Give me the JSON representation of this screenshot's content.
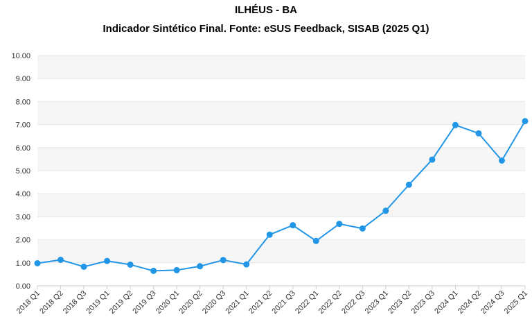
{
  "chart_data": {
    "type": "line",
    "title": "ILHÉUS - BA",
    "subtitle": "Indicador Sintético Final. Fonte: eSUS Feedback, SISAB (2025 Q1)",
    "xlabel": "",
    "ylabel": "",
    "ylim": [
      0,
      10
    ],
    "yticks": [
      "0.00",
      "1.00",
      "2.00",
      "3.00",
      "4.00",
      "5.00",
      "6.00",
      "7.00",
      "8.00",
      "9.00",
      "10.00"
    ],
    "grid": true,
    "categories": [
      "2018 Q1",
      "2018 Q2",
      "2018 Q3",
      "2019 Q1",
      "2019 Q2",
      "2019 Q3",
      "2020 Q1",
      "2020 Q2",
      "2020 Q3",
      "2021 Q1",
      "2021 Q2",
      "2021 Q3",
      "2022 Q1",
      "2022 Q2",
      "2022 Q3",
      "2023 Q1",
      "2023 Q2",
      "2023 Q3",
      "2024 Q1",
      "2024 Q2",
      "2024 Q3",
      "2025 Q1"
    ],
    "series": [
      {
        "values": [
          0.98,
          1.13,
          0.83,
          1.08,
          0.92,
          0.65,
          0.68,
          0.85,
          1.12,
          0.93,
          2.22,
          2.63,
          1.95,
          2.69,
          2.49,
          3.26,
          4.39,
          5.48,
          6.98,
          6.62,
          5.44,
          7.15
        ],
        "color": "#2196E6"
      }
    ],
    "band_color": "#F6F6F6",
    "grid_color": "#E6E6E6"
  }
}
